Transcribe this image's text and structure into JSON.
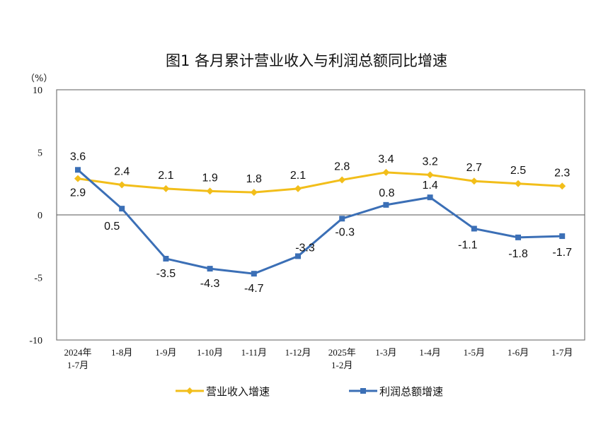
{
  "chart_data": {
    "type": "line",
    "title": "图1  各月累计营业收入与利润总额同比增速",
    "ylabel": "（%）",
    "ylim": [
      -10,
      10
    ],
    "yticks": [
      "10",
      "5",
      "0",
      "-5",
      "-10"
    ],
    "ytick_values": [
      10,
      5,
      0,
      -5,
      -10
    ],
    "categories": [
      [
        "2024年",
        "1-7月"
      ],
      [
        "1-8月"
      ],
      [
        "1-9月"
      ],
      [
        "1-10月"
      ],
      [
        "1-11月"
      ],
      [
        "1-12月"
      ],
      [
        "2025年",
        "1-2月"
      ],
      [
        "1-3月"
      ],
      [
        "1-4月"
      ],
      [
        "1-5月"
      ],
      [
        "1-6月"
      ],
      [
        "1-7月"
      ]
    ],
    "series": [
      {
        "name": "营业收入增速",
        "color": "#F2BE1A",
        "marker": "diamond",
        "values": [
          2.9,
          2.4,
          2.1,
          1.9,
          1.8,
          2.1,
          2.8,
          3.4,
          3.2,
          2.7,
          2.5,
          2.3
        ]
      },
      {
        "name": "利润总额增速",
        "color": "#3B6FB6",
        "marker": "square",
        "values": [
          3.6,
          0.5,
          -3.5,
          -4.3,
          -4.7,
          -3.3,
          -0.3,
          0.8,
          1.4,
          -1.1,
          -1.8,
          -1.7
        ]
      }
    ],
    "grid": false,
    "legend": "bottom"
  }
}
